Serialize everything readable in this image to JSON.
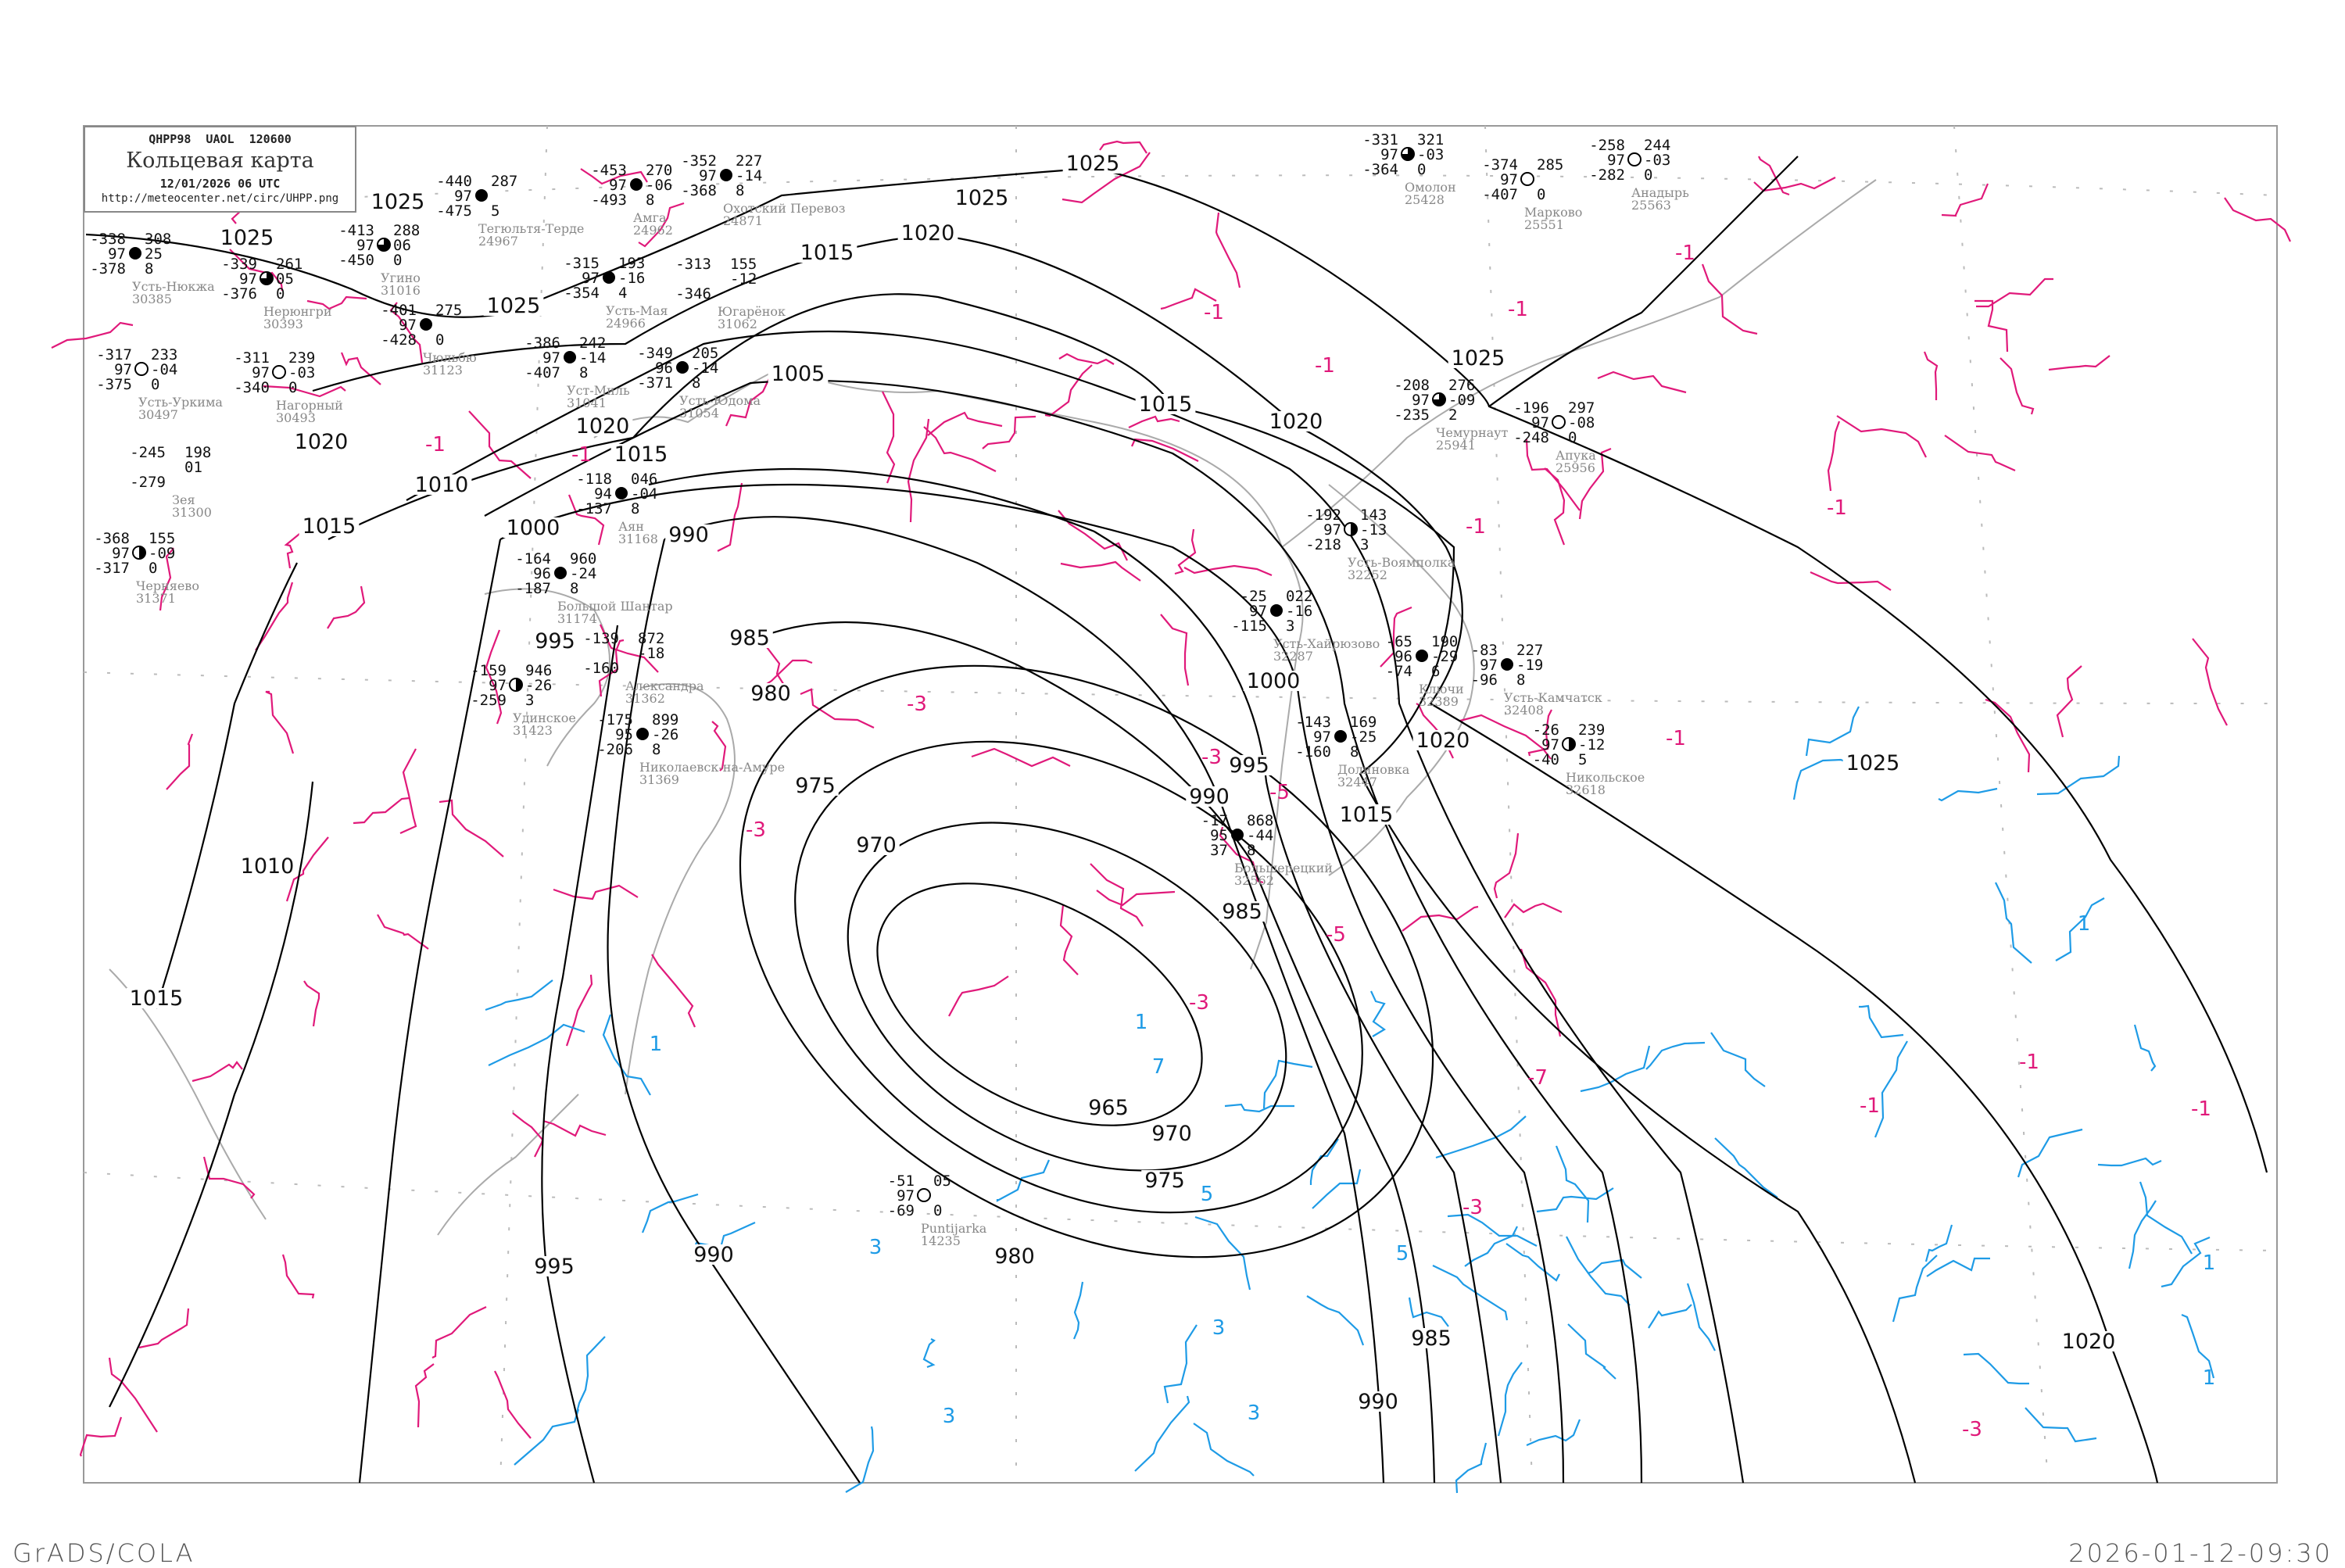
{
  "header": {
    "code_line": "QHPP98  UAOL  120600",
    "title": "Кольцевая карта",
    "datetime": "12/01/2026 06 UTC",
    "url": "http://meteocenter.net/circ/UHPP.png"
  },
  "footer": {
    "software": "GrADS/COLA",
    "generated": "2026-01-12-09:30"
  },
  "colors": {
    "isobar": "#000000",
    "negative_isotherm": "#e0197a",
    "positive_isotherm": "#1e9be6",
    "coastline": "#aaaaaa",
    "precip_marker": "#3399ff"
  },
  "isobar_labels": [
    "1025",
    "1025",
    "1025",
    "1020",
    "1020",
    "1015",
    "1010",
    "1015",
    "1000",
    "990",
    "995",
    "985",
    "980",
    "975",
    "970",
    "965",
    "970",
    "975",
    "980",
    "990",
    "995",
    "985",
    "990",
    "1020",
    "1025",
    "1015",
    "1020",
    "1000",
    "990",
    "985",
    "995",
    "1015",
    "1020",
    "1025",
    "1025",
    "1015",
    "1020",
    "1025",
    "1005",
    "1010",
    "1015"
  ],
  "isotherm_labels": {
    "negative": [
      "-1",
      "-1",
      "-1",
      "-1",
      "-1",
      "-1",
      "-1",
      "-1",
      "-1",
      "-1",
      "-1",
      "-1",
      "-3",
      "-3",
      "-3",
      "-3",
      "-3",
      "-3",
      "-5",
      "-5",
      "-7"
    ],
    "positive": [
      "1",
      "1",
      "1",
      "1",
      "1",
      "3",
      "3",
      "3",
      "3",
      "5",
      "5",
      "7"
    ]
  },
  "stations": [
    {
      "name": "Усть-Нюкжа",
      "id": "30385",
      "t": "-338",
      "ww": "97",
      "td": "-378",
      "p": "308",
      "tend": "25",
      "n": "8",
      "icon": "filled"
    },
    {
      "name": "Нерюнгри",
      "id": "30393",
      "t": "-339",
      "ww": "97",
      "td": "-376",
      "p": "261",
      "tend": "05",
      "n": "0",
      "icon": "three-quarter"
    },
    {
      "name": "Усть-Уркима",
      "id": "30497",
      "t": "-317",
      "ww": "97",
      "td": "-375",
      "p": "233",
      "tend": "-04",
      "n": "0",
      "icon": "empty"
    },
    {
      "name": "Нагорный",
      "id": "30493",
      "t": "-311",
      "ww": "97",
      "td": "-340",
      "p": "239",
      "tend": "-03",
      "n": "0",
      "icon": "empty"
    },
    {
      "name": "Угино",
      "id": "31016",
      "t": "-413",
      "ww": "97",
      "td": "-450",
      "p": "288",
      "tend": "06",
      "n": "0",
      "icon": "three-quarter"
    },
    {
      "name": "Чюльбю",
      "id": "31123",
      "t": "-401",
      "ww": "97",
      "td": "-428",
      "p": "275",
      "tend": "",
      "n": "0",
      "icon": "filled"
    },
    {
      "name": "Зея",
      "id": "31300",
      "t": "-245",
      "ww": "",
      "td": "-279",
      "p": "198",
      "tend": "01",
      "n": "",
      "icon": "none"
    },
    {
      "name": "Черняево",
      "id": "31371",
      "t": "-368",
      "ww": "97",
      "td": "-317",
      "p": "155",
      "tend": "-09",
      "n": "0",
      "icon": "half"
    },
    {
      "name": "Тегюльтя-Терде",
      "id": "24967",
      "t": "-440",
      "ww": "97",
      "td": "-475",
      "p": "287",
      "tend": "",
      "n": "5",
      "icon": "filled"
    },
    {
      "name": "Амга",
      "id": "24962",
      "t": "-453",
      "ww": "97",
      "td": "-493",
      "p": "270",
      "tend": "-06",
      "n": "8",
      "icon": "filled"
    },
    {
      "name": "Охотский Перевоз",
      "id": "24871",
      "t": "-352",
      "ww": "97",
      "td": "-368",
      "p": "227",
      "tend": "-14",
      "n": "8",
      "icon": "filled"
    },
    {
      "name": "Усть-Мая",
      "id": "24966",
      "t": "-315",
      "ww": "97",
      "td": "-354",
      "p": "193",
      "tend": "-16",
      "n": "4",
      "icon": "filled"
    },
    {
      "name": "Уст-Миль",
      "id": "31041",
      "t": "-386",
      "ww": "97",
      "td": "-407",
      "p": "242",
      "tend": "-14",
      "n": "8",
      "icon": "filled"
    },
    {
      "name": "Усть-Юдома",
      "id": "31054",
      "t": "-349",
      "ww": "96",
      "td": "-371",
      "p": "205",
      "tend": "-14",
      "n": "8",
      "icon": "filled"
    },
    {
      "name": "Югарёнок",
      "id": "31062",
      "t": "-313",
      "ww": "",
      "td": "-346",
      "p": "155",
      "tend": "-12",
      "n": "",
      "icon": "none"
    },
    {
      "name": "Аян",
      "id": "31168",
      "t": "-118",
      "ww": "94",
      "td": "-137",
      "p": "046",
      "tend": "-04",
      "n": "8",
      "icon": "filled"
    },
    {
      "name": "Большой Шантар",
      "id": "31174",
      "t": "-164",
      "ww": "96",
      "td": "-187",
      "p": "960",
      "tend": "-24",
      "n": "8",
      "icon": "filled"
    },
    {
      "name": "Александра",
      "id": "31362",
      "t": "-139",
      "ww": "",
      "td": "-160",
      "p": "872",
      "tend": "-18",
      "n": "",
      "icon": "none"
    },
    {
      "name": "Удинское",
      "id": "31423",
      "t": "-159",
      "ww": "97",
      "td": "-259",
      "p": "946",
      "tend": "-26",
      "n": "3",
      "icon": "half"
    },
    {
      "name": "Николаевск-на-Амуре",
      "id": "31369",
      "t": "-175",
      "ww": "95",
      "td": "-206",
      "p": "899",
      "tend": "-26",
      "n": "8",
      "icon": "filled"
    },
    {
      "name": "Усть-Воямполка",
      "id": "32252",
      "t": "-192",
      "ww": "97",
      "td": "-218",
      "p": "143",
      "tend": "-13",
      "n": "3",
      "icon": "half"
    },
    {
      "name": "Усть-Хайрюзово",
      "id": "32287",
      "t": "-25",
      "ww": "97",
      "td": "-115",
      "p": "022",
      "tend": "-16",
      "n": "3",
      "icon": "filled"
    },
    {
      "name": "Ключи",
      "id": "32389",
      "t": "-65",
      "ww": "96",
      "td": "-74",
      "p": "190",
      "tend": "-29",
      "n": "6",
      "icon": "filled"
    },
    {
      "name": "Усть-Камчатск",
      "id": "32408",
      "t": "-83",
      "ww": "97",
      "td": "-96",
      "p": "227",
      "tend": "-19",
      "n": "8",
      "icon": "filled"
    },
    {
      "name": "Долиновка",
      "id": "32447",
      "t": "-143",
      "ww": "97",
      "td": "-160",
      "p": "169",
      "tend": "-25",
      "n": "8",
      "icon": "filled"
    },
    {
      "name": "Никольское",
      "id": "32618",
      "t": "-26",
      "ww": "97",
      "td": "-40",
      "p": "239",
      "tend": "-12",
      "n": "5",
      "icon": "half"
    },
    {
      "name": "Большерецкий",
      "id": "32562",
      "t": "-17",
      "ww": "95",
      "td": "37",
      "p": "868",
      "tend": "-44",
      "n": "8",
      "icon": "filled"
    },
    {
      "name": "Омолон",
      "id": "25428",
      "t": "-331",
      "ww": "97",
      "td": "-364",
      "p": "321",
      "tend": "-03",
      "n": "0",
      "icon": "three-quarter"
    },
    {
      "name": "Марково",
      "id": "25551",
      "t": "-374",
      "ww": "97",
      "td": "-407",
      "p": "285",
      "tend": "",
      "n": "0",
      "icon": "empty"
    },
    {
      "name": "Анадырь",
      "id": "25563",
      "t": "-258",
      "ww": "97",
      "td": "-282",
      "p": "244",
      "tend": "-03",
      "n": "0",
      "icon": "empty"
    },
    {
      "name": "Чемурнаут",
      "id": "25941",
      "t": "-208",
      "ww": "97",
      "td": "-235",
      "p": "276",
      "tend": "-09",
      "n": "2",
      "icon": "three-quarter"
    },
    {
      "name": "Апука",
      "id": "25956",
      "t": "-196",
      "ww": "97",
      "td": "-248",
      "p": "297",
      "tend": "-08",
      "n": "0",
      "icon": "empty"
    },
    {
      "name": "Puntijarka",
      "id": "14235",
      "t": "-51",
      "ww": "97",
      "td": "-69",
      "p": "05",
      "tend": "",
      "n": "0",
      "icon": "empty"
    }
  ]
}
